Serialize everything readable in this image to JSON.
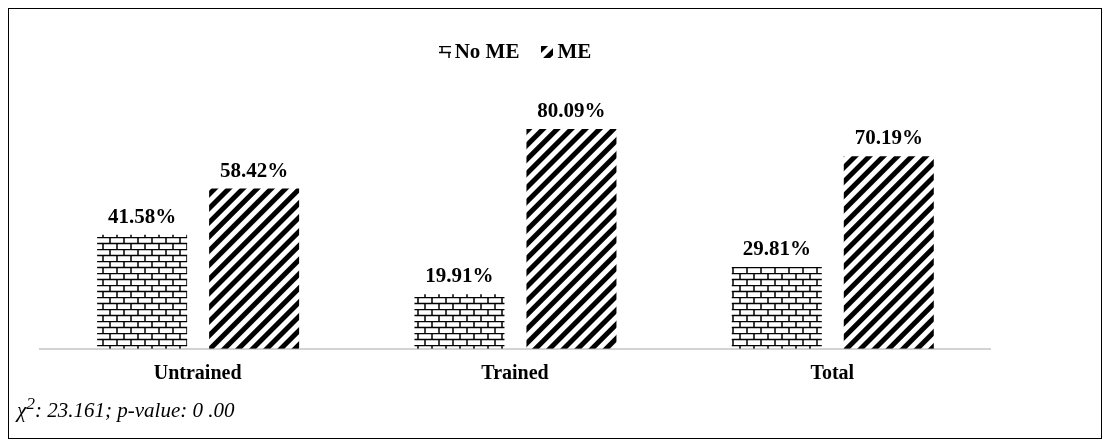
{
  "chart_data": {
    "type": "bar",
    "categories": [
      "Untrained",
      "Trained",
      "Total"
    ],
    "series": [
      {
        "name": "No ME",
        "color": "#000000",
        "values": [
          41.58,
          19.91,
          29.81
        ],
        "value_labels": [
          "41.58%",
          "19.91%",
          "29.81%"
        ]
      },
      {
        "name": "ME",
        "color": "#000000",
        "values": [
          58.42,
          80.09,
          70.19
        ],
        "value_labels": [
          "58.42%",
          "80.09%",
          "70.19%"
        ]
      }
    ],
    "legend": "top",
    "annotations": [
      "χ$^{2}$: 23.161; p-value: 0 .00"
    ]
  }
}
